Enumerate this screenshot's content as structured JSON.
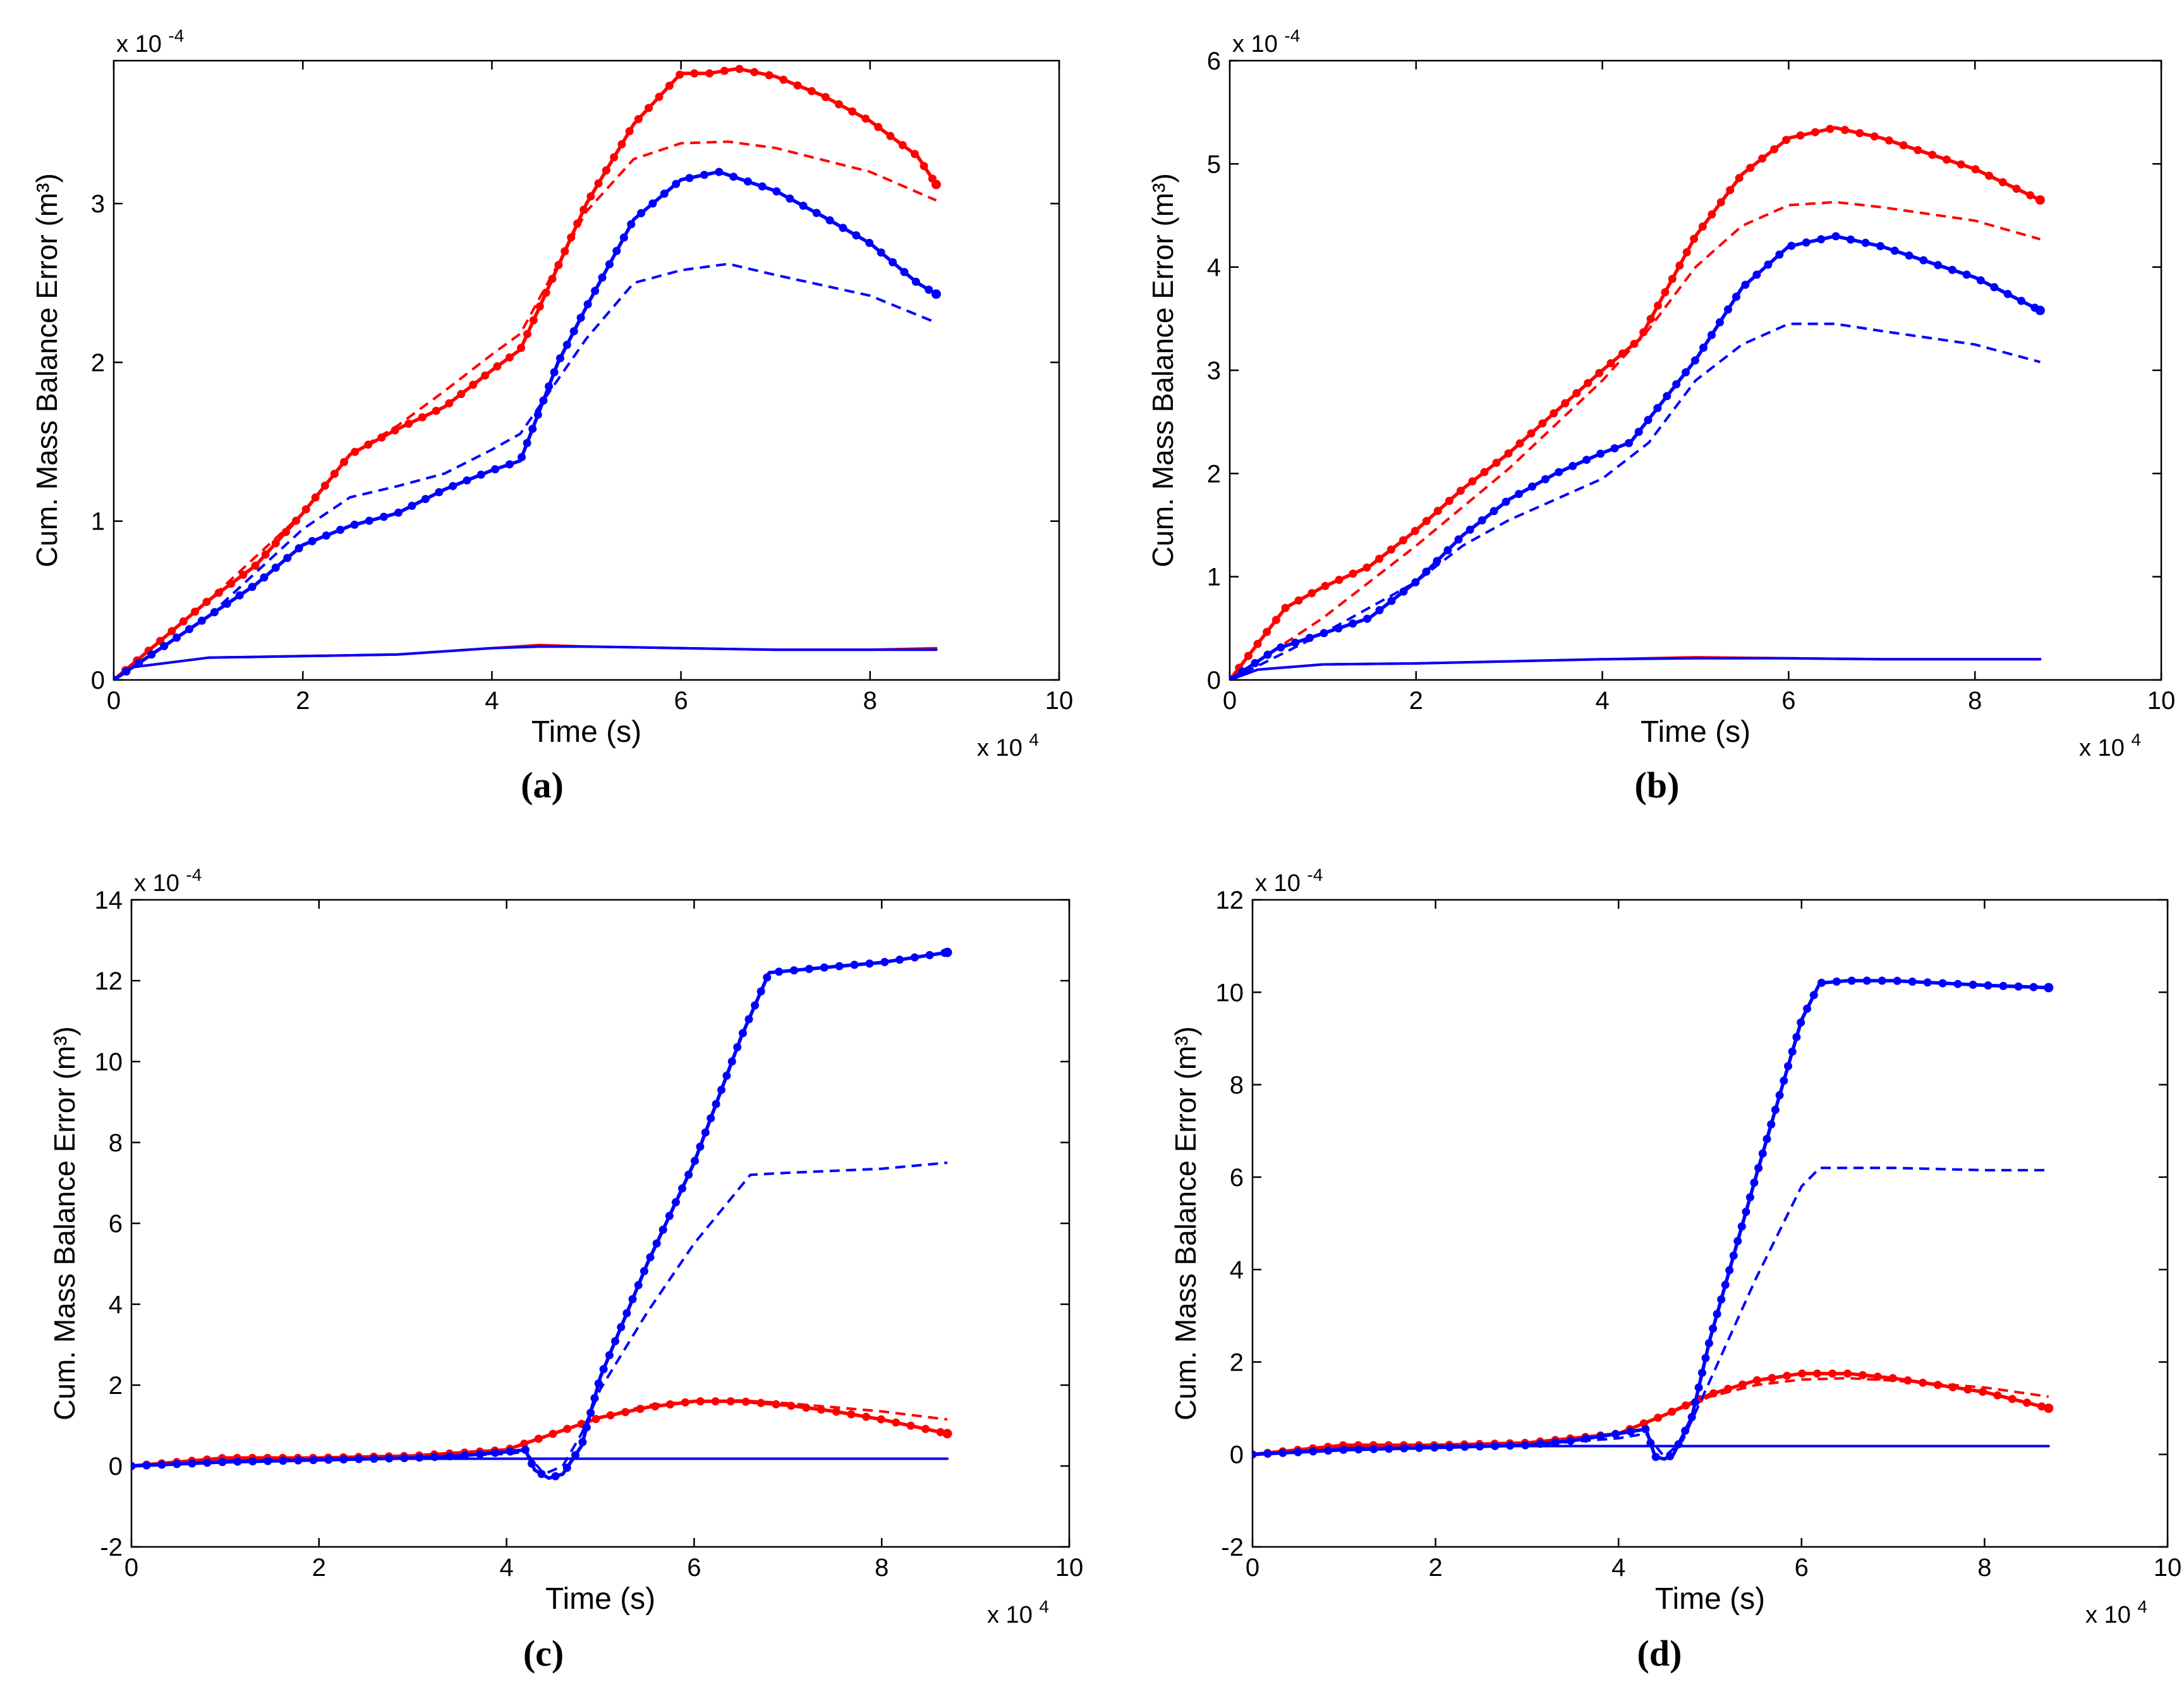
{
  "colors": {
    "red": "#ff0000",
    "blue": "#0000ff",
    "axis": "#000000"
  },
  "chart_data": [
    {
      "type": "line",
      "panel_label": "(a)",
      "xlabel": "Time (s)",
      "ylabel": "Cum. Mass Balance Error (m³)",
      "x_multiplier": "x 10",
      "x_exp": "4",
      "y_multiplier": "x 10",
      "y_exp": "-4",
      "xlim": [
        0,
        10
      ],
      "ylim": [
        0,
        3.9
      ],
      "xticks": [
        0,
        2,
        4,
        6,
        8,
        10
      ],
      "yticks": [
        0,
        1,
        2,
        3
      ],
      "series": [
        {
          "name": "red-dotted",
          "color": "red",
          "style": "solid-dots",
          "x": [
            0,
            0.5,
            1,
            1.5,
            2,
            2.5,
            3,
            3.5,
            4,
            4.3,
            5,
            5.5,
            6,
            6.3,
            6.6,
            7,
            7.5,
            8,
            8.5,
            8.7
          ],
          "y": [
            0,
            0.25,
            0.5,
            0.72,
            1.05,
            1.42,
            1.58,
            1.72,
            1.95,
            2.08,
            3.0,
            3.5,
            3.82,
            3.82,
            3.85,
            3.8,
            3.68,
            3.52,
            3.3,
            3.12
          ]
        },
        {
          "name": "red-dashed",
          "color": "red",
          "style": "dashed",
          "x": [
            0,
            1,
            2,
            2.5,
            3,
            3.5,
            4,
            4.3,
            5,
            5.5,
            6,
            6.5,
            7,
            8,
            8.7
          ],
          "y": [
            0,
            0.5,
            1.05,
            1.42,
            1.6,
            1.82,
            2.05,
            2.18,
            2.95,
            3.28,
            3.38,
            3.39,
            3.35,
            3.2,
            3.02
          ]
        },
        {
          "name": "red-solid",
          "color": "red",
          "style": "solid",
          "x": [
            0,
            0.2,
            1,
            2,
            3,
            4,
            4.5,
            5,
            6,
            7,
            8,
            8.7
          ],
          "y": [
            0,
            0.08,
            0.14,
            0.15,
            0.16,
            0.2,
            0.22,
            0.21,
            0.2,
            0.19,
            0.19,
            0.2
          ]
        },
        {
          "name": "blue-dotted",
          "color": "blue",
          "style": "solid-dots",
          "x": [
            0,
            0.5,
            1,
            1.5,
            2,
            2.5,
            3,
            3.5,
            4,
            4.3,
            4.7,
            5,
            5.5,
            6,
            6.4,
            7,
            7.5,
            8,
            8.5,
            8.7
          ],
          "y": [
            0,
            0.2,
            0.4,
            0.6,
            0.85,
            0.97,
            1.05,
            1.2,
            1.32,
            1.38,
            2.0,
            2.35,
            2.9,
            3.15,
            3.2,
            3.08,
            2.92,
            2.75,
            2.5,
            2.43
          ]
        },
        {
          "name": "blue-dashed",
          "color": "blue",
          "style": "dashed",
          "x": [
            0,
            1,
            2,
            2.5,
            3,
            3.5,
            4,
            4.3,
            5,
            5.5,
            6,
            6.5,
            7,
            8,
            8.7
          ],
          "y": [
            0,
            0.4,
            0.95,
            1.15,
            1.22,
            1.3,
            1.45,
            1.55,
            2.15,
            2.5,
            2.58,
            2.62,
            2.55,
            2.42,
            2.25
          ]
        },
        {
          "name": "blue-solid",
          "color": "blue",
          "style": "solid",
          "x": [
            0,
            0.2,
            1,
            2,
            3,
            4,
            4.5,
            5,
            6,
            7,
            8,
            8.7
          ],
          "y": [
            0,
            0.08,
            0.14,
            0.15,
            0.16,
            0.2,
            0.21,
            0.21,
            0.2,
            0.19,
            0.19,
            0.19
          ]
        }
      ]
    },
    {
      "type": "line",
      "panel_label": "(b)",
      "xlabel": "Time (s)",
      "ylabel": "Cum. Mass Balance Error (m³)",
      "x_multiplier": "x 10",
      "x_exp": "4",
      "y_multiplier": "x 10",
      "y_exp": "-4",
      "xlim": [
        0,
        10
      ],
      "ylim": [
        0,
        6
      ],
      "xticks": [
        0,
        2,
        4,
        6,
        8,
        10
      ],
      "yticks": [
        0,
        1,
        2,
        3,
        4,
        5,
        6
      ],
      "series": [
        {
          "name": "red-dotted",
          "color": "red",
          "style": "solid-dots",
          "x": [
            0,
            0.3,
            0.6,
            1,
            1.5,
            2,
            2.5,
            3,
            3.5,
            4,
            4.4,
            5,
            5.5,
            6,
            6.5,
            7,
            7.5,
            8,
            8.7
          ],
          "y": [
            0,
            0.35,
            0.7,
            0.9,
            1.1,
            1.45,
            1.85,
            2.2,
            2.6,
            3.0,
            3.3,
            4.3,
            4.9,
            5.25,
            5.35,
            5.25,
            5.1,
            4.95,
            4.65
          ]
        },
        {
          "name": "red-dashed",
          "color": "red",
          "style": "dashed",
          "x": [
            0,
            0.5,
            1,
            2,
            3,
            4,
            4.5,
            5,
            5.5,
            6,
            6.5,
            7,
            8,
            8.7
          ],
          "y": [
            0,
            0.3,
            0.6,
            1.3,
            2.05,
            2.9,
            3.4,
            4.0,
            4.4,
            4.6,
            4.63,
            4.58,
            4.45,
            4.27
          ]
        },
        {
          "name": "red-solid",
          "color": "red",
          "style": "solid",
          "x": [
            0,
            0.3,
            1,
            2,
            3,
            4,
            5,
            6,
            7,
            8,
            8.7
          ],
          "y": [
            0,
            0.1,
            0.15,
            0.16,
            0.18,
            0.2,
            0.22,
            0.21,
            0.2,
            0.2,
            0.2
          ]
        },
        {
          "name": "blue-dotted",
          "color": "blue",
          "style": "solid-dots",
          "x": [
            0,
            0.5,
            1,
            1.5,
            2,
            2.5,
            3,
            3.5,
            4,
            4.3,
            5,
            5.5,
            6,
            6.5,
            7,
            7.5,
            8,
            8.7
          ],
          "y": [
            0,
            0.3,
            0.45,
            0.6,
            0.95,
            1.4,
            1.75,
            2.0,
            2.2,
            2.3,
            3.1,
            3.8,
            4.2,
            4.3,
            4.2,
            4.05,
            3.9,
            3.58
          ]
        },
        {
          "name": "blue-dashed",
          "color": "blue",
          "style": "dashed",
          "x": [
            0,
            1,
            2,
            2.5,
            3,
            3.5,
            4,
            4.5,
            5,
            5.5,
            6,
            6.5,
            7,
            8,
            8.7
          ],
          "y": [
            0,
            0.45,
            0.95,
            1.3,
            1.55,
            1.75,
            1.95,
            2.3,
            2.9,
            3.25,
            3.45,
            3.45,
            3.38,
            3.25,
            3.08
          ]
        },
        {
          "name": "blue-solid",
          "color": "blue",
          "style": "solid",
          "x": [
            0,
            0.3,
            1,
            2,
            3,
            4,
            5,
            6,
            7,
            8,
            8.7
          ],
          "y": [
            0,
            0.1,
            0.15,
            0.16,
            0.18,
            0.2,
            0.21,
            0.21,
            0.2,
            0.2,
            0.2
          ]
        }
      ]
    },
    {
      "type": "line",
      "panel_label": "(c)",
      "xlabel": "Time (s)",
      "ylabel": "Cum. Mass Balance Error (m³)",
      "x_multiplier": "x 10",
      "x_exp": "4",
      "y_multiplier": "x 10",
      "y_exp": "-4",
      "xlim": [
        0,
        10
      ],
      "ylim": [
        -2,
        14
      ],
      "xticks": [
        0,
        2,
        4,
        6,
        8,
        10
      ],
      "yticks": [
        -2,
        0,
        2,
        4,
        6,
        8,
        10,
        12,
        14
      ],
      "series": [
        {
          "name": "blue-solid",
          "color": "blue",
          "style": "solid",
          "x": [
            0,
            0.5,
            1,
            2,
            3,
            4,
            5,
            6,
            7,
            8,
            8.7
          ],
          "y": [
            0,
            0.1,
            0.15,
            0.18,
            0.18,
            0.18,
            0.18,
            0.18,
            0.18,
            0.18,
            0.18
          ]
        },
        {
          "name": "red-dashed",
          "color": "red",
          "style": "dashed",
          "x": [
            0,
            1,
            2,
            3,
            4,
            4.5,
            5,
            5.5,
            6,
            6.5,
            7,
            8,
            8.7
          ],
          "y": [
            0,
            0.2,
            0.2,
            0.25,
            0.4,
            0.8,
            1.2,
            1.5,
            1.6,
            1.62,
            1.55,
            1.35,
            1.15
          ]
        },
        {
          "name": "red-dotted",
          "color": "red",
          "style": "solid-dots",
          "x": [
            0,
            1,
            2,
            3,
            4,
            4.5,
            5,
            5.5,
            6,
            6.5,
            7,
            7.5,
            8,
            8.7
          ],
          "y": [
            0,
            0.2,
            0.2,
            0.25,
            0.4,
            0.8,
            1.2,
            1.45,
            1.6,
            1.6,
            1.5,
            1.35,
            1.15,
            0.8
          ]
        },
        {
          "name": "blue-dashed",
          "color": "blue",
          "style": "dashed",
          "x": [
            0,
            1,
            2,
            3,
            4,
            4.2,
            4.4,
            4.6,
            4.8,
            5,
            5.5,
            6,
            6.6,
            7,
            8,
            8.7
          ],
          "y": [
            0,
            0.12,
            0.18,
            0.2,
            0.3,
            0.35,
            -0.2,
            0.0,
            0.8,
            1.9,
            3.8,
            5.5,
            7.2,
            7.25,
            7.35,
            7.5
          ]
        },
        {
          "name": "blue-dotted",
          "color": "blue",
          "style": "solid-dots",
          "x": [
            0,
            1,
            2,
            3,
            3.5,
            4,
            4.2,
            4.3,
            4.45,
            4.6,
            4.8,
            5,
            5.5,
            6,
            6.5,
            6.8,
            7.5,
            8,
            8.7
          ],
          "y": [
            0,
            0.1,
            0.15,
            0.2,
            0.25,
            0.35,
            0.4,
            -0.1,
            -0.3,
            -0.2,
            0.5,
            2.2,
            5.0,
            7.5,
            10.6,
            12.2,
            12.35,
            12.45,
            12.7
          ]
        }
      ]
    },
    {
      "type": "line",
      "panel_label": "(d)",
      "xlabel": "Time (s)",
      "ylabel": "Cum. Mass Balance Error (m³)",
      "x_multiplier": "x 10",
      "x_exp": "4",
      "y_multiplier": "x 10",
      "y_exp": "-4",
      "xlim": [
        0,
        10
      ],
      "ylim": [
        -2,
        12
      ],
      "xticks": [
        0,
        2,
        4,
        6,
        8,
        10
      ],
      "yticks": [
        -2,
        0,
        2,
        4,
        6,
        8,
        10,
        12
      ],
      "series": [
        {
          "name": "blue-solid",
          "color": "blue",
          "style": "solid",
          "x": [
            0,
            0.5,
            1,
            2,
            3,
            4,
            5,
            6,
            7,
            8,
            8.7
          ],
          "y": [
            0,
            0.1,
            0.15,
            0.18,
            0.18,
            0.18,
            0.18,
            0.18,
            0.18,
            0.18,
            0.18
          ]
        },
        {
          "name": "red-dashed",
          "color": "red",
          "style": "dashed",
          "x": [
            0,
            1,
            2,
            3,
            4,
            4.5,
            5,
            5.5,
            6,
            6.5,
            7,
            8,
            8.7
          ],
          "y": [
            0,
            0.2,
            0.2,
            0.25,
            0.45,
            0.85,
            1.25,
            1.5,
            1.62,
            1.65,
            1.6,
            1.45,
            1.25
          ]
        },
        {
          "name": "red-dotted",
          "color": "red",
          "style": "solid-dots",
          "x": [
            0,
            1,
            2,
            3,
            4,
            4.5,
            5,
            5.5,
            6,
            6.5,
            7,
            7.5,
            8,
            8.7
          ],
          "y": [
            0,
            0.2,
            0.2,
            0.25,
            0.45,
            0.85,
            1.3,
            1.6,
            1.75,
            1.75,
            1.65,
            1.5,
            1.35,
            1.0
          ]
        },
        {
          "name": "blue-dashed",
          "color": "blue",
          "style": "dashed",
          "x": [
            0,
            1,
            2,
            3,
            4,
            4.3,
            4.5,
            4.7,
            5,
            5.5,
            6,
            6.2,
            7,
            8,
            8.7
          ],
          "y": [
            0,
            0.12,
            0.18,
            0.2,
            0.35,
            0.45,
            -0.05,
            0.3,
            1.6,
            3.8,
            5.8,
            6.2,
            6.2,
            6.15,
            6.15
          ]
        },
        {
          "name": "blue-dotted",
          "color": "blue",
          "style": "solid-dots",
          "x": [
            0,
            1,
            2,
            3,
            3.5,
            4,
            4.3,
            4.4,
            4.5,
            4.6,
            4.8,
            5,
            5.5,
            6,
            6.2,
            6.5,
            7,
            8,
            8.7
          ],
          "y": [
            0,
            0.1,
            0.15,
            0.2,
            0.3,
            0.45,
            0.55,
            -0.05,
            -0.1,
            0.0,
            0.8,
            2.5,
            6.0,
            9.4,
            10.2,
            10.25,
            10.25,
            10.15,
            10.1
          ]
        }
      ]
    }
  ]
}
